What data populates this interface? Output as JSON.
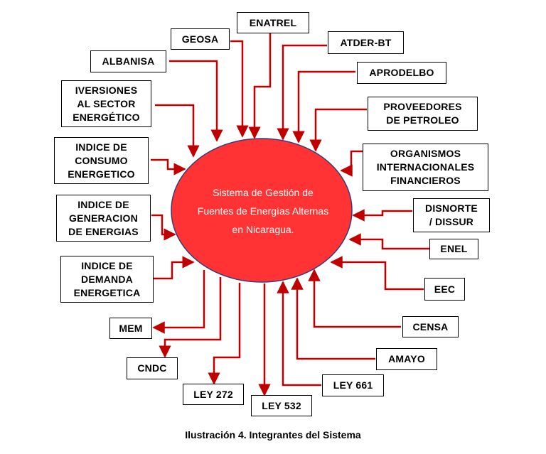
{
  "colors": {
    "arrow": "#c00000",
    "ellipse_fill": "#ff3333",
    "ellipse_stroke": "#3a3a7a"
  },
  "center": {
    "text": "Sistema de Gestión de\nFuentes de Energías Alternas\nen Nicaragua."
  },
  "nodes": {
    "enatrel": "ENATREL",
    "geosa": "GEOSA",
    "atder_bt": "ATDER-BT",
    "albanisa": "ALBANISA",
    "aprodelbo": "APRODELBO",
    "inversiones": "IVERSIONES\nAL SECTOR\nENERGÉTICO",
    "proveedores": "PROVEEDORES\nDE PETROLEO",
    "indice_consumo": "INDICE DE\nCONSUMO\nENERGETICO",
    "organismos": "ORGANISMOS\nINTERNACIONALES\nFINANCIEROS",
    "indice_generacion": "INDICE DE\nGENERACION\nDE ENERGIAS",
    "disnorte": "DISNORTE\n/ DISSUR",
    "enel": "ENEL",
    "indice_demanda": "INDICE DE\nDEMANDA\nENERGETICA",
    "eec": "EEC",
    "mem": "MEM",
    "censa": "CENSA",
    "amayo": "AMAYO",
    "cndc": "CNDC",
    "ley661": "LEY 661",
    "ley272": "LEY 272",
    "ley532": "LEY 532"
  },
  "caption": "Ilustración 4. Integrantes del Sistema"
}
